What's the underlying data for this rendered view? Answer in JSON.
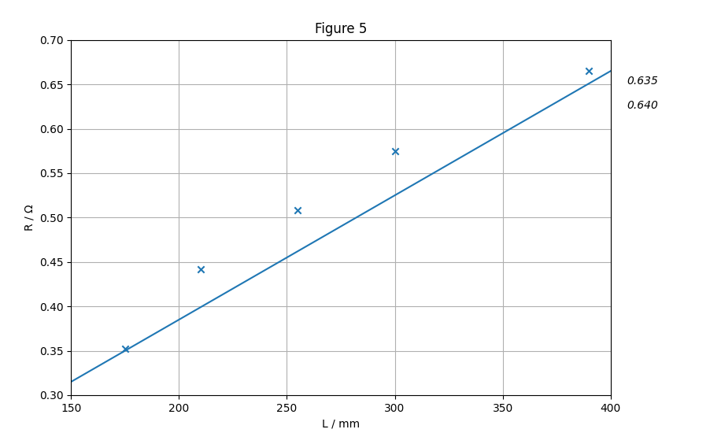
{
  "chart_data": {
    "type": "scatter",
    "title": "Figure 5",
    "x_label": "L / mm",
    "y_label": "R / Ω",
    "xlim": [
      150,
      400
    ],
    "ylim": [
      0.3,
      0.7
    ],
    "xticks": [
      150,
      200,
      250,
      300,
      350,
      400
    ],
    "yticks": [
      {
        "value": 0.3,
        "label": "0.30"
      },
      0.35,
      {
        "value": 0.4,
        "label": "0.40"
      },
      0.45,
      {
        "value": 0.5,
        "label": "0.50"
      },
      0.55,
      {
        "value": 0.6,
        "label": "0.60"
      },
      0.65,
      {
        "value": 0.7,
        "label": "0.70"
      }
    ],
    "grid": true,
    "series": [
      {
        "type": "scatter",
        "marker": "x",
        "x": [
          175,
          210,
          255,
          300,
          390
        ],
        "values": [
          0.352,
          0.442,
          0.508,
          0.575,
          0.665
        ]
      },
      {
        "type": "line",
        "x": [
          150,
          400
        ],
        "values": [
          0.315,
          0.665
        ]
      }
    ],
    "annotations": [
      "0.635",
      "0.640"
    ]
  }
}
